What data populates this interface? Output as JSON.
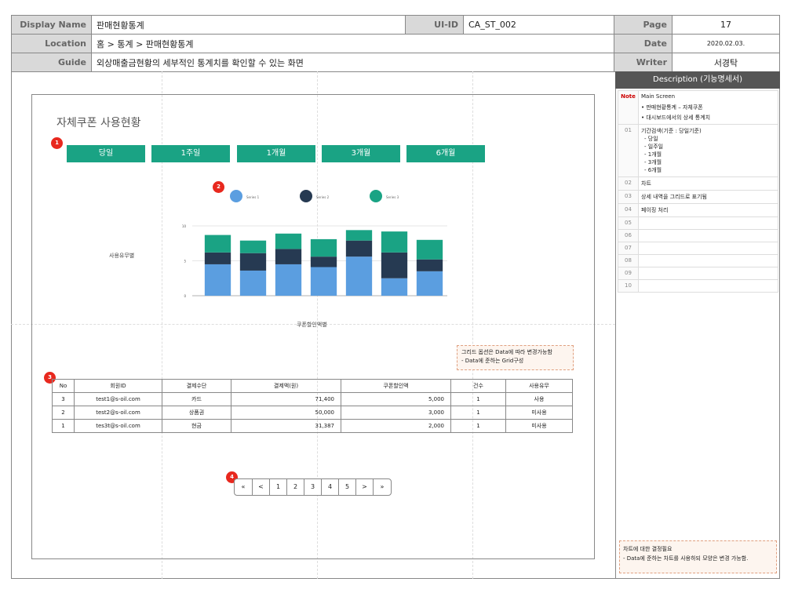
{
  "header": {
    "display_name_label": "Display Name",
    "display_name": "판매현황통계",
    "uiid_label": "UI-ID",
    "uiid": "CA_ST_002",
    "page_label": "Page",
    "page": "17",
    "location_label": "Location",
    "location": "홈 > 통계 > 판매현황통계",
    "date_label": "Date",
    "date": "2020.02.03.",
    "guide_label": "Guide",
    "guide": "외상매출금현황의 세부적인 통계치를 확인할 수 있는 화면",
    "writer_label": "Writer",
    "writer": "서경탁"
  },
  "description": {
    "title": "Description (기능명세서)",
    "note_label": "Note",
    "note_lines": [
      "Main Screen",
      "• 판매현황통계 – 자체쿠폰",
      "• 대시보드에서의 상세 통계치"
    ],
    "rows": [
      {
        "num": "01",
        "lines": [
          "기간검색(기준 : 당일기준)",
          "-   당일",
          "-   일주일",
          "-   1개월",
          "-   3개월",
          "-   6개월"
        ]
      },
      {
        "num": "02",
        "lines": [
          "차트"
        ]
      },
      {
        "num": "03",
        "lines": [
          "상세 내역을 그리드로 표기됨"
        ]
      },
      {
        "num": "04",
        "lines": [
          "페이징 처리"
        ]
      },
      {
        "num": "05",
        "lines": [
          ""
        ]
      },
      {
        "num": "06",
        "lines": [
          ""
        ]
      },
      {
        "num": "07",
        "lines": [
          ""
        ]
      },
      {
        "num": "08",
        "lines": [
          ""
        ]
      },
      {
        "num": "09",
        "lines": [
          ""
        ]
      },
      {
        "num": "10",
        "lines": [
          ""
        ]
      }
    ],
    "bottom_note_1": "차트에 대한 결정필요",
    "bottom_note_2": "- Data에 준하는 차트를 사용하되 모양은 변경 가능함."
  },
  "screen": {
    "title": "자체쿠폰 사용현황",
    "badges": [
      "1",
      "2",
      "3",
      "4"
    ],
    "period_buttons": [
      "당일",
      "1주일",
      "1개월",
      "3개월",
      "6개월"
    ],
    "legend": [
      {
        "label": "Series 1",
        "color": "#5b9ee0"
      },
      {
        "label": "Series 2",
        "color": "#263a52"
      },
      {
        "label": "Series 3",
        "color": "#1aa384"
      }
    ],
    "y_axis_label": "사용유무별",
    "x_axis_label": "쿠폰할인액별",
    "remark_1": "그리드 옵션은 Data에 따라 변경가능함",
    "remark_2": "- Data에 준하는 Grid구성"
  },
  "chart_data": {
    "type": "bar",
    "stacked": true,
    "categories": [
      "",
      "",
      "",
      "",
      "",
      "",
      ""
    ],
    "ylim": [
      0,
      10
    ],
    "y_ticks": [
      "0",
      "5",
      "10"
    ],
    "series": [
      {
        "name": "Series 1",
        "values": [
          4.5,
          3.6,
          4.5,
          4.1,
          5.6,
          2.5,
          3.5
        ]
      },
      {
        "name": "Series 2",
        "values": [
          1.7,
          2.5,
          2.2,
          1.5,
          2.3,
          3.7,
          1.7
        ]
      },
      {
        "name": "Series 3",
        "values": [
          2.5,
          1.8,
          2.2,
          2.5,
          1.5,
          3.0,
          2.8
        ]
      }
    ],
    "colors": [
      "#5b9ee0",
      "#263a52",
      "#1aa384"
    ],
    "grid": true
  },
  "table": {
    "columns": [
      "No",
      "회원ID",
      "결제수단",
      "결제액(원)",
      "쿠폰할인액",
      "건수",
      "사용유무"
    ],
    "rows": [
      [
        "3",
        "test1@s-oil.com",
        "카드",
        "71,400",
        "5,000",
        "1",
        "사용"
      ],
      [
        "2",
        "test2@s-oil.com",
        "상품권",
        "50,000",
        "3,000",
        "1",
        "미사용"
      ],
      [
        "1",
        "tes3t@s-oil.com",
        "현금",
        "31,387",
        "2,000",
        "1",
        "미사용"
      ]
    ]
  },
  "pagination": [
    "«",
    "<",
    "1",
    "2",
    "3",
    "4",
    "5",
    ">",
    "»"
  ]
}
